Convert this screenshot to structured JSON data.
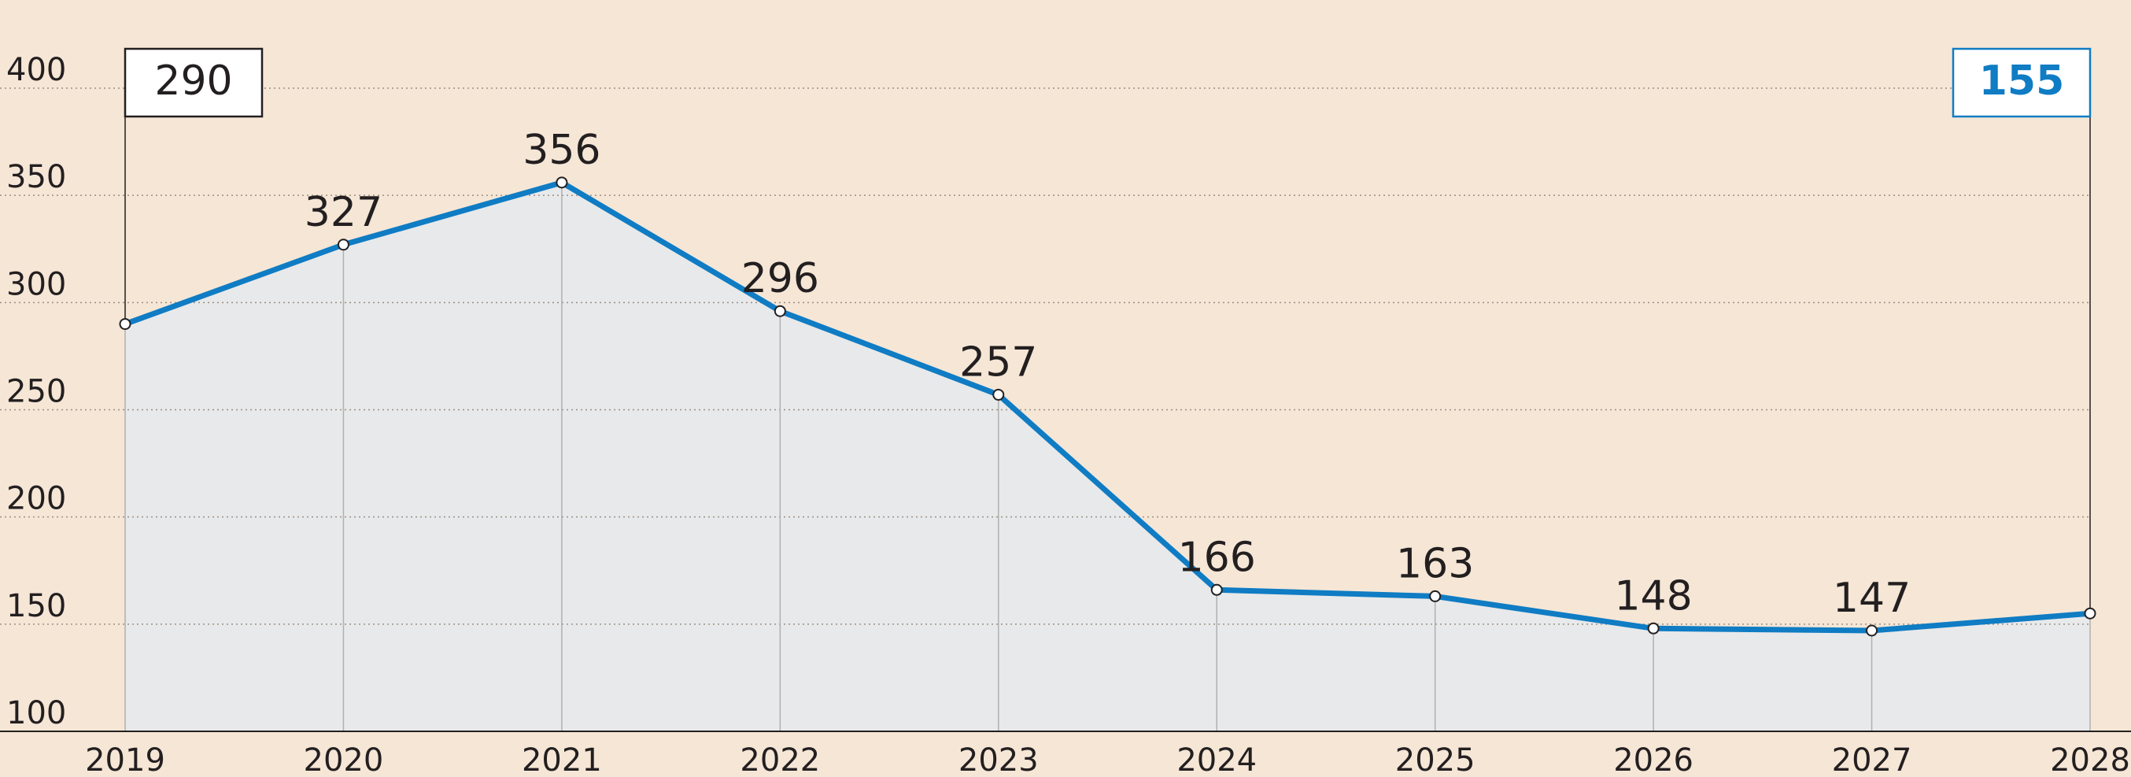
{
  "chart_data": {
    "type": "line",
    "categories": [
      "2019",
      "2020",
      "2021",
      "2022",
      "2023",
      "2024",
      "2025",
      "2026",
      "2027",
      "2028"
    ],
    "values": [
      290,
      327,
      356,
      296,
      257,
      166,
      163,
      148,
      147,
      155
    ],
    "color": "#0f7cc4",
    "ylim": [
      100,
      400
    ],
    "yticks": [
      100,
      150,
      200,
      250,
      300,
      350,
      400
    ],
    "grid": true
  }
}
